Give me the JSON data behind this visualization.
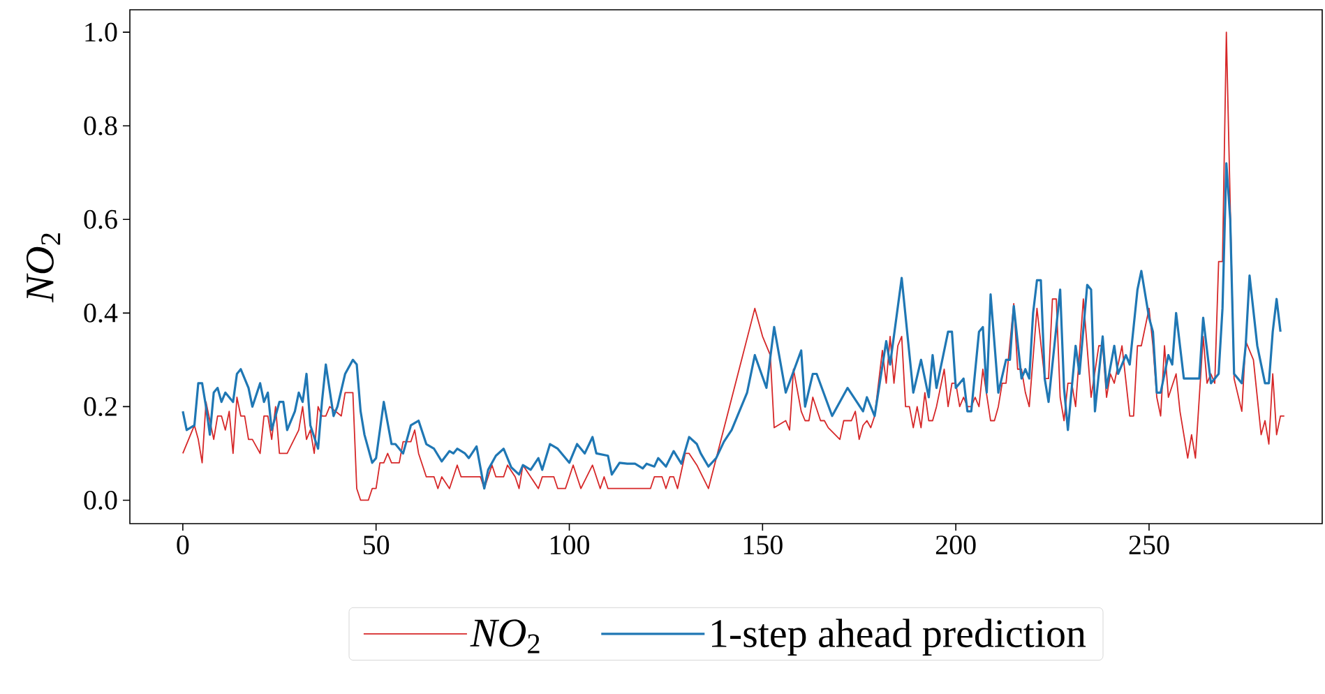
{
  "chart_data": {
    "type": "line",
    "ylabel": "*NO*$_{2}$",
    "xlim": [
      -13.7,
      294.8
    ],
    "ylim": [
      -0.05,
      1.048
    ],
    "xticks": [
      0,
      50,
      100,
      150,
      200,
      250
    ],
    "yticks": [
      {
        "value": 0,
        "label": "0.0"
      },
      {
        "value": 0.2,
        "label": "0.2"
      },
      {
        "value": 0.4,
        "label": "0.4"
      },
      {
        "value": 0.6,
        "label": "0.6"
      },
      {
        "value": 0.8,
        "label": "0.8"
      },
      {
        "value": 1.0,
        "label": "1.0"
      }
    ],
    "grid": false,
    "legend": "bottom",
    "marker": "none",
    "series": [
      {
        "name": "*NO*$_{2}$",
        "color": "#d62728",
        "x": [
          0,
          3,
          4,
          5,
          6,
          8,
          9,
          10,
          11,
          12,
          13,
          14,
          15,
          16,
          17,
          18,
          20,
          21,
          22,
          23,
          24,
          25,
          27,
          30,
          31,
          32,
          33,
          34,
          35,
          36,
          37,
          38,
          41,
          42,
          44,
          45,
          46,
          48,
          49,
          50,
          51,
          52,
          53,
          54,
          56,
          57,
          59,
          60,
          61,
          63,
          65,
          66,
          67,
          69,
          71,
          72,
          77,
          78,
          80,
          81,
          83,
          84,
          86,
          87,
          88,
          90,
          92,
          93,
          96,
          97,
          99,
          101,
          103,
          106,
          107,
          108,
          109,
          110,
          121,
          122,
          124,
          125,
          126,
          127,
          128,
          130,
          131,
          133,
          136,
          148,
          150,
          152,
          153,
          156,
          157,
          158,
          160,
          161,
          162,
          163,
          165,
          166,
          167,
          170,
          171,
          173,
          174,
          175,
          176,
          177,
          178,
          179,
          181,
          182,
          183,
          184,
          185,
          186,
          187,
          188,
          189,
          190,
          191,
          192,
          193,
          194,
          195,
          197,
          198,
          199,
          200,
          201,
          202,
          203,
          204,
          205,
          206,
          207,
          209,
          210,
          211,
          212,
          213,
          215,
          216,
          217,
          218,
          219,
          221,
          223,
          224,
          225,
          226,
          227,
          228,
          229,
          230,
          231,
          233,
          235,
          237,
          238,
          239,
          240,
          241,
          243,
          245,
          246,
          247,
          248,
          250,
          251,
          252,
          253,
          254,
          255,
          257,
          258,
          260,
          261,
          262,
          264,
          265,
          266,
          267,
          268,
          269,
          270,
          272,
          274,
          275,
          277,
          279,
          280,
          281,
          282,
          283,
          284,
          285
        ],
        "values": [
          0.1,
          0.16,
          0.13,
          0.08,
          0.21,
          0.13,
          0.18,
          0.18,
          0.15,
          0.19,
          0.1,
          0.22,
          0.18,
          0.18,
          0.13,
          0.13,
          0.1,
          0.18,
          0.18,
          0.13,
          0.2,
          0.1,
          0.1,
          0.15,
          0.2,
          0.13,
          0.15,
          0.1,
          0.2,
          0.18,
          0.18,
          0.2,
          0.18,
          0.23,
          0.23,
          0.025,
          0,
          0,
          0.025,
          0.025,
          0.08,
          0.08,
          0.1,
          0.08,
          0.08,
          0.125,
          0.125,
          0.15,
          0.1,
          0.05,
          0.05,
          0.025,
          0.05,
          0.025,
          0.075,
          0.05,
          0.05,
          0.025,
          0.075,
          0.05,
          0.05,
          0.075,
          0.05,
          0.025,
          0.075,
          0.05,
          0.025,
          0.05,
          0.05,
          0.025,
          0.025,
          0.075,
          0.025,
          0.075,
          0.05,
          0.025,
          0.05,
          0.025,
          0.025,
          0.05,
          0.05,
          0.025,
          0.05,
          0.05,
          0.025,
          0.1,
          0.1,
          0.075,
          0.025,
          0.41,
          0.35,
          0.31,
          0.155,
          0.17,
          0.15,
          0.28,
          0.19,
          0.17,
          0.17,
          0.22,
          0.17,
          0.17,
          0.155,
          0.13,
          0.17,
          0.17,
          0.19,
          0.13,
          0.16,
          0.17,
          0.155,
          0.18,
          0.32,
          0.25,
          0.35,
          0.25,
          0.33,
          0.35,
          0.2,
          0.2,
          0.155,
          0.2,
          0.155,
          0.23,
          0.17,
          0.17,
          0.2,
          0.28,
          0.2,
          0.25,
          0.25,
          0.2,
          0.22,
          0.2,
          0.2,
          0.22,
          0.2,
          0.28,
          0.17,
          0.17,
          0.2,
          0.25,
          0.25,
          0.42,
          0.28,
          0.28,
          0.23,
          0.2,
          0.41,
          0.26,
          0.26,
          0.43,
          0.43,
          0.22,
          0.17,
          0.25,
          0.25,
          0.2,
          0.43,
          0.22,
          0.33,
          0.33,
          0.22,
          0.27,
          0.25,
          0.33,
          0.18,
          0.18,
          0.33,
          0.33,
          0.41,
          0.33,
          0.22,
          0.18,
          0.33,
          0.22,
          0.27,
          0.19,
          0.09,
          0.14,
          0.09,
          0.35,
          0.25,
          0.27,
          0.25,
          0.51,
          0.51,
          1.0,
          0.26,
          0.19,
          0.34,
          0.3,
          0.14,
          0.17,
          0.12,
          0.27,
          0.14,
          0.18,
          0.18
        ]
      },
      {
        "name": "1-step ahead prediction",
        "color": "#1f77b4",
        "x": [
          0,
          1,
          3,
          4,
          5,
          6,
          7,
          8,
          9,
          10,
          11,
          12,
          13,
          14,
          15,
          17,
          18,
          20,
          21,
          22,
          23,
          25,
          26,
          27,
          29,
          30,
          31,
          32,
          33,
          35,
          36,
          37,
          39,
          40,
          42,
          44,
          45,
          46,
          47,
          49,
          50,
          52,
          54,
          55,
          57,
          59,
          61,
          63,
          65,
          67,
          69,
          70,
          71,
          73,
          74,
          76,
          78,
          79,
          81,
          83,
          85,
          87,
          88,
          90,
          92,
          93,
          95,
          97,
          100,
          102,
          104,
          106,
          107,
          110,
          111,
          113,
          115,
          117,
          119,
          120,
          122,
          123,
          125,
          127,
          129,
          131,
          133,
          134,
          136,
          138,
          140,
          142,
          144,
          146,
          148,
          151,
          153,
          156,
          160,
          161,
          163,
          164,
          168,
          172,
          176,
          177,
          179,
          182,
          183,
          186,
          189,
          191,
          193,
          194,
          195,
          198,
          199,
          200,
          202,
          203,
          204,
          206,
          207,
          208,
          209,
          211,
          213,
          214,
          215,
          217,
          218,
          219,
          220,
          221,
          222,
          223,
          224,
          227,
          228,
          229,
          231,
          232,
          234,
          235,
          236,
          238,
          239,
          241,
          242,
          244,
          245,
          247,
          248,
          250,
          251,
          252,
          253,
          255,
          256,
          257,
          259,
          261,
          263,
          264,
          266,
          268,
          269,
          270,
          271,
          272,
          274,
          275,
          276,
          278,
          280,
          281,
          282,
          283,
          284
        ],
        "values": [
          0.19,
          0.15,
          0.16,
          0.25,
          0.25,
          0.2,
          0.14,
          0.23,
          0.24,
          0.21,
          0.23,
          0.22,
          0.21,
          0.27,
          0.28,
          0.24,
          0.2,
          0.25,
          0.21,
          0.23,
          0.15,
          0.21,
          0.21,
          0.15,
          0.19,
          0.23,
          0.21,
          0.27,
          0.16,
          0.11,
          0.21,
          0.29,
          0.18,
          0.2,
          0.27,
          0.3,
          0.29,
          0.19,
          0.14,
          0.08,
          0.09,
          0.21,
          0.12,
          0.12,
          0.1,
          0.16,
          0.17,
          0.12,
          0.11,
          0.083,
          0.105,
          0.1,
          0.11,
          0.1,
          0.09,
          0.115,
          0.025,
          0.065,
          0.095,
          0.11,
          0.07,
          0.055,
          0.075,
          0.065,
          0.09,
          0.065,
          0.12,
          0.11,
          0.08,
          0.12,
          0.1,
          0.135,
          0.1,
          0.095,
          0.055,
          0.08,
          0.078,
          0.078,
          0.068,
          0.078,
          0.072,
          0.09,
          0.072,
          0.105,
          0.078,
          0.135,
          0.12,
          0.1,
          0.072,
          0.09,
          0.125,
          0.15,
          0.19,
          0.23,
          0.31,
          0.24,
          0.37,
          0.23,
          0.32,
          0.2,
          0.27,
          0.27,
          0.18,
          0.24,
          0.19,
          0.22,
          0.18,
          0.34,
          0.29,
          0.475,
          0.23,
          0.3,
          0.22,
          0.31,
          0.24,
          0.36,
          0.36,
          0.24,
          0.26,
          0.19,
          0.19,
          0.36,
          0.37,
          0.23,
          0.44,
          0.23,
          0.3,
          0.3,
          0.415,
          0.26,
          0.28,
          0.26,
          0.4,
          0.47,
          0.47,
          0.26,
          0.21,
          0.45,
          0.24,
          0.15,
          0.33,
          0.27,
          0.46,
          0.45,
          0.19,
          0.35,
          0.24,
          0.33,
          0.27,
          0.31,
          0.29,
          0.45,
          0.49,
          0.39,
          0.36,
          0.23,
          0.23,
          0.31,
          0.29,
          0.4,
          0.26,
          0.26,
          0.26,
          0.39,
          0.25,
          0.27,
          0.41,
          0.72,
          0.6,
          0.27,
          0.25,
          0.33,
          0.48,
          0.33,
          0.25,
          0.25,
          0.36,
          0.43,
          0.36
        ]
      }
    ]
  }
}
